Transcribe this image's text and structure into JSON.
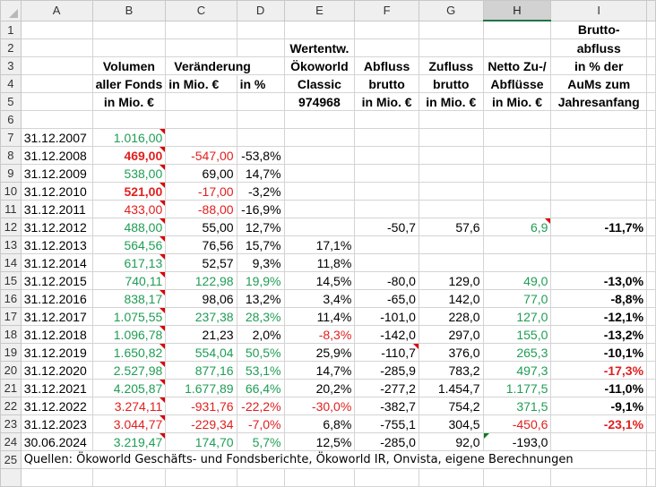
{
  "columns": [
    "A",
    "B",
    "C",
    "D",
    "E",
    "F",
    "G",
    "H",
    "I",
    ""
  ],
  "selected_column": "H",
  "colors": {
    "positive": "#1f9d55",
    "negative": "#e0201f",
    "comment_marker": "#dd0000"
  },
  "header_rows": {
    "1": {
      "I": "Brutto-"
    },
    "2": {
      "E": "Wertentw.",
      "I": "abfluss"
    },
    "3": {
      "B": "Volumen",
      "C": "Veränderung",
      "E": "Ökoworld",
      "F": "Abfluss",
      "G": "Zufluss",
      "H": "Netto Zu-/",
      "I": "in % der"
    },
    "4": {
      "B": "aller Fonds",
      "C": "in Mio. €",
      "D": "in %",
      "E": "Classic",
      "F": "brutto",
      "G": "brutto",
      "H": "Abflüsse",
      "I": "AuMs zum"
    },
    "5": {
      "B": "in Mio. €",
      "E": "974968",
      "F": "in Mio. €",
      "G": "in Mio. €",
      "H": "in Mio. €",
      "I": "Jahresanfang"
    }
  },
  "data_rows": [
    {
      "row": 7,
      "cells": {
        "A": "31.12.2007",
        "B": "1.016,00"
      },
      "style": {
        "B": "g note"
      }
    },
    {
      "row": 8,
      "cells": {
        "A": "31.12.2008",
        "B": "469,00",
        "C": "-547,00",
        "D": "-53,8%"
      },
      "style": {
        "B": "r b note",
        "C": "r"
      }
    },
    {
      "row": 9,
      "cells": {
        "A": "31.12.2009",
        "B": "538,00",
        "C": "69,00",
        "D": "14,7%"
      },
      "style": {
        "B": "g note"
      }
    },
    {
      "row": 10,
      "cells": {
        "A": "31.12.2010",
        "B": "521,00",
        "C": "-17,00",
        "D": "-3,2%"
      },
      "style": {
        "B": "r b note",
        "C": "r"
      }
    },
    {
      "row": 11,
      "cells": {
        "A": "31.12.2011",
        "B": "433,00",
        "C": "-88,00",
        "D": "-16,9%"
      },
      "style": {
        "B": "r note",
        "C": "r"
      }
    },
    {
      "row": 12,
      "cells": {
        "A": "31.12.2012",
        "B": "488,00",
        "C": "55,00",
        "D": "12,7%",
        "F": "-50,7",
        "G": "57,6",
        "H": "6,9",
        "I": "-11,7%"
      },
      "style": {
        "B": "g note",
        "H": "g note",
        "I": "b"
      }
    },
    {
      "row": 13,
      "cells": {
        "A": "31.12.2013",
        "B": "564,56",
        "C": "76,56",
        "D": "15,7%",
        "E": "17,1%"
      },
      "style": {
        "B": "g note"
      }
    },
    {
      "row": 14,
      "cells": {
        "A": "31.12.2014",
        "B": "617,13",
        "C": "52,57",
        "D": "9,3%",
        "E": "11,8%"
      },
      "style": {
        "B": "g note"
      }
    },
    {
      "row": 15,
      "cells": {
        "A": "31.12.2015",
        "B": "740,11",
        "C": "122,98",
        "D": "19,9%",
        "E": "14,5%",
        "F": "-80,0",
        "G": "129,0",
        "H": "49,0",
        "I": "-13,0%"
      },
      "style": {
        "B": "g note",
        "C": "g",
        "D": "g",
        "H": "g",
        "I": "b"
      }
    },
    {
      "row": 16,
      "cells": {
        "A": "31.12.2016",
        "B": "838,17",
        "C": "98,06",
        "D": "13,2%",
        "E": "3,4%",
        "F": "-65,0",
        "G": "142,0",
        "H": "77,0",
        "I": "-8,8%"
      },
      "style": {
        "B": "g note",
        "H": "g",
        "I": "b"
      }
    },
    {
      "row": 17,
      "cells": {
        "A": "31.12.2017",
        "B": "1.075,55",
        "C": "237,38",
        "D": "28,3%",
        "E": "11,4%",
        "F": "-101,0",
        "G": "228,0",
        "H": "127,0",
        "I": "-12,1%"
      },
      "style": {
        "B": "g note",
        "C": "g",
        "D": "g",
        "H": "g",
        "I": "b"
      }
    },
    {
      "row": 18,
      "cells": {
        "A": "31.12.2018",
        "B": "1.096,78",
        "C": "21,23",
        "D": "2,0%",
        "E": "-8,3%",
        "F": "-142,0",
        "G": "297,0",
        "H": "155,0",
        "I": "-13,2%"
      },
      "style": {
        "B": "g note",
        "E": "r",
        "H": "g",
        "I": "b"
      }
    },
    {
      "row": 19,
      "cells": {
        "A": "31.12.2019",
        "B": "1.650,82",
        "C": "554,04",
        "D": "50,5%",
        "E": "25,9%",
        "F": "-110,7",
        "G": "376,0",
        "H": "265,3",
        "I": "-10,1%"
      },
      "style": {
        "B": "g note",
        "C": "g",
        "D": "g",
        "F": "note",
        "H": "g",
        "I": "b"
      }
    },
    {
      "row": 20,
      "cells": {
        "A": "31.12.2020",
        "B": "2.527,98",
        "C": "877,16",
        "D": "53,1%",
        "E": "14,7%",
        "F": "-285,9",
        "G": "783,2",
        "H": "497,3",
        "I": "-17,3%"
      },
      "style": {
        "B": "g note",
        "C": "g",
        "D": "g",
        "H": "g",
        "I": "r b"
      }
    },
    {
      "row": 21,
      "cells": {
        "A": "31.12.2021",
        "B": "4.205,87",
        "C": "1.677,89",
        "D": "66,4%",
        "E": "20,2%",
        "F": "-277,2",
        "G": "1.454,7",
        "H": "1.177,5",
        "I": "-11,0%"
      },
      "style": {
        "B": "g note",
        "C": "g",
        "D": "g",
        "H": "g",
        "I": "b"
      }
    },
    {
      "row": 22,
      "cells": {
        "A": "31.12.2022",
        "B": "3.274,11",
        "C": "-931,76",
        "D": "-22,2%",
        "E": "-30,0%",
        "F": "-382,7",
        "G": "754,2",
        "H": "371,5",
        "I": "-9,1%"
      },
      "style": {
        "B": "r note",
        "C": "r",
        "D": "r",
        "E": "r",
        "H": "g",
        "I": "b"
      }
    },
    {
      "row": 23,
      "cells": {
        "A": "31.12.2023",
        "B": "3.044,77",
        "C": "-229,34",
        "D": "-7,0%",
        "E": "6,8%",
        "F": "-755,1",
        "G": "304,5",
        "H": "-450,6",
        "I": "-23,1%"
      },
      "style": {
        "B": "r note",
        "C": "r",
        "D": "r",
        "H": "r",
        "I": "r b"
      }
    },
    {
      "row": 24,
      "cells": {
        "A": "30.06.2024",
        "B": "3.219,47",
        "C": "174,70",
        "D": "5,7%",
        "E": "12,5%",
        "F": "-285,0",
        "G": "92,0",
        "H": "-193,0"
      },
      "style": {
        "B": "g note",
        "C": "g",
        "D": "g",
        "H": "gnote"
      }
    }
  ],
  "source_row": {
    "row": 25,
    "text": "Quellen: Ökoworld Geschäfts- und Fondsberichte, Ökoworld IR, Onvista, eigene Berechnungen"
  }
}
